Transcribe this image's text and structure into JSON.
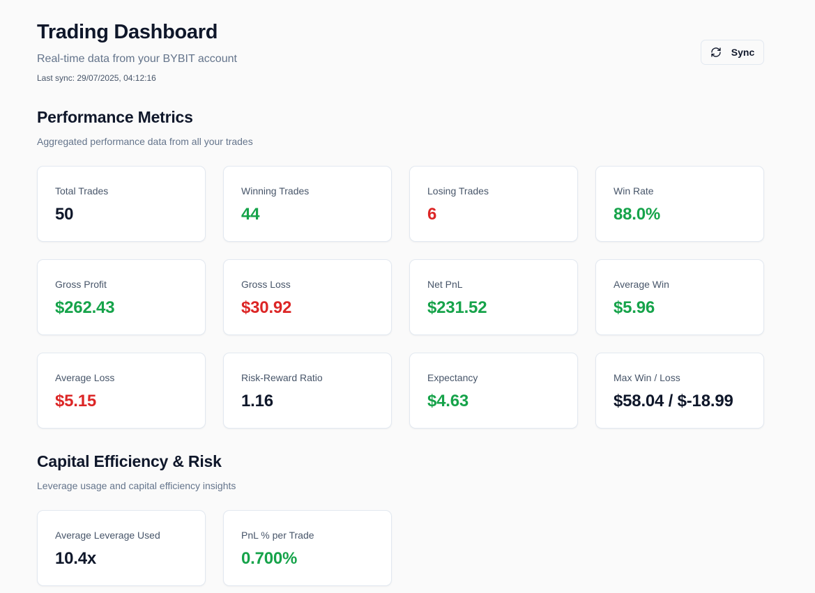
{
  "header": {
    "title": "Trading Dashboard",
    "subtitle": "Real-time data from your BYBIT account",
    "last_sync": "Last sync: 29/07/2025, 04:12:16",
    "sync_button": {
      "label": "Sync",
      "icon": "refresh-icon"
    }
  },
  "performance": {
    "title": "Performance Metrics",
    "description": "Aggregated performance data from all your trades",
    "metrics": [
      {
        "label": "Total Trades",
        "value": "50",
        "tone": "default"
      },
      {
        "label": "Winning Trades",
        "value": "44",
        "tone": "positive"
      },
      {
        "label": "Losing Trades",
        "value": "6",
        "tone": "negative"
      },
      {
        "label": "Win Rate",
        "value": "88.0%",
        "tone": "positive"
      },
      {
        "label": "Gross Profit",
        "value": "$262.43",
        "tone": "positive"
      },
      {
        "label": "Gross Loss",
        "value": "$30.92",
        "tone": "negative"
      },
      {
        "label": "Net PnL",
        "value": "$231.52",
        "tone": "positive"
      },
      {
        "label": "Average Win",
        "value": "$5.96",
        "tone": "positive"
      },
      {
        "label": "Average Loss",
        "value": "$5.15",
        "tone": "negative"
      },
      {
        "label": "Risk-Reward Ratio",
        "value": "1.16",
        "tone": "default"
      },
      {
        "label": "Expectancy",
        "value": "$4.63",
        "tone": "positive"
      },
      {
        "label": "Max Win / Loss",
        "value": "$58.04 / $-18.99",
        "tone": "default"
      }
    ]
  },
  "capital": {
    "title": "Capital Efficiency & Risk",
    "description": "Leverage usage and capital efficiency insights",
    "metrics": [
      {
        "label": "Average Leverage Used",
        "value": "10.4x",
        "tone": "default"
      },
      {
        "label": "PnL % per Trade",
        "value": "0.700%",
        "tone": "positive"
      }
    ]
  },
  "colors": {
    "positive": "#16a34a",
    "negative": "#dc2626",
    "default": "#0f172a",
    "muted_text": "#64748b",
    "background": "#fafafa",
    "card_border": "#e2e8f0"
  }
}
